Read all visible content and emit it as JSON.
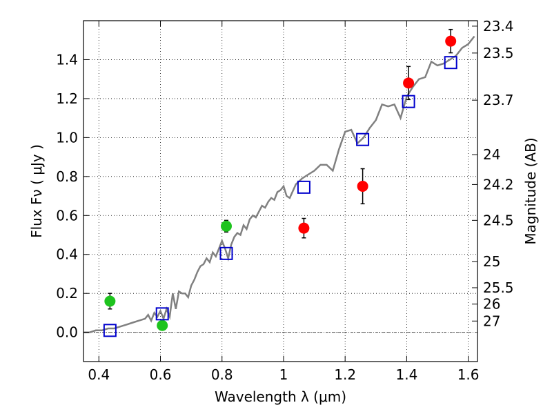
{
  "chart_data": {
    "type": "scatter",
    "xlabel": "Wavelength  λ (μm)",
    "ylabel": "Flux  Fν  ( μJy )",
    "ylabel_right": "Magnitude (AB)",
    "xlim": [
      0.35,
      1.63
    ],
    "ylim": [
      -0.15,
      1.6
    ],
    "grid": true,
    "x_ticks": [
      {
        "value": 0.4,
        "label": "0.4"
      },
      {
        "value": 0.6,
        "label": "0.6"
      },
      {
        "value": 0.8,
        "label": "0.8"
      },
      {
        "value": 1.0,
        "label": "1"
      },
      {
        "value": 1.2,
        "label": "1.2"
      },
      {
        "value": 1.4,
        "label": "1.4"
      },
      {
        "value": 1.6,
        "label": "1.6"
      }
    ],
    "y_ticks": [
      {
        "value": 0.0,
        "label": "0.0"
      },
      {
        "value": 0.2,
        "label": "0.2"
      },
      {
        "value": 0.4,
        "label": "0.4"
      },
      {
        "value": 0.6,
        "label": "0.6"
      },
      {
        "value": 0.8,
        "label": "0.8"
      },
      {
        "value": 1.0,
        "label": "1.0"
      },
      {
        "value": 1.2,
        "label": "1.2"
      },
      {
        "value": 1.4,
        "label": "1.4"
      }
    ],
    "right_ticks": [
      {
        "flux": 1.572,
        "label": "23.4"
      },
      {
        "flux": 1.434,
        "label": "23.5"
      },
      {
        "flux": 1.192,
        "label": "23.7"
      },
      {
        "flux": 0.912,
        "label": "24"
      },
      {
        "flux": 0.759,
        "label": "24.2"
      },
      {
        "flux": 0.575,
        "label": "24.5"
      },
      {
        "flux": 0.363,
        "label": "25"
      },
      {
        "flux": 0.229,
        "label": "25.5"
      },
      {
        "flux": 0.145,
        "label": "26"
      },
      {
        "flux": 0.058,
        "label": "27"
      }
    ],
    "model_spectrum": {
      "color": "#808080",
      "x": [
        0.35,
        0.37,
        0.39,
        0.41,
        0.43,
        0.45,
        0.47,
        0.49,
        0.51,
        0.53,
        0.55,
        0.56,
        0.57,
        0.58,
        0.59,
        0.6,
        0.61,
        0.62,
        0.63,
        0.64,
        0.65,
        0.66,
        0.67,
        0.68,
        0.69,
        0.7,
        0.71,
        0.72,
        0.73,
        0.74,
        0.75,
        0.76,
        0.77,
        0.78,
        0.79,
        0.8,
        0.81,
        0.82,
        0.83,
        0.84,
        0.85,
        0.86,
        0.87,
        0.88,
        0.89,
        0.9,
        0.91,
        0.92,
        0.93,
        0.94,
        0.95,
        0.96,
        0.97,
        0.98,
        0.99,
        1.0,
        1.01,
        1.02,
        1.04,
        1.06,
        1.08,
        1.1,
        1.12,
        1.14,
        1.16,
        1.18,
        1.2,
        1.22,
        1.24,
        1.26,
        1.28,
        1.3,
        1.32,
        1.34,
        1.36,
        1.38,
        1.4,
        1.42,
        1.44,
        1.46,
        1.48,
        1.5,
        1.52,
        1.54,
        1.56,
        1.58,
        1.6,
        1.62
      ],
      "y": [
        0.0,
        0.0,
        0.01,
        0.01,
        0.02,
        0.02,
        0.03,
        0.04,
        0.05,
        0.06,
        0.07,
        0.09,
        0.06,
        0.1,
        0.08,
        0.11,
        0.07,
        0.12,
        0.08,
        0.2,
        0.12,
        0.21,
        0.2,
        0.2,
        0.18,
        0.24,
        0.27,
        0.31,
        0.34,
        0.35,
        0.38,
        0.36,
        0.41,
        0.39,
        0.43,
        0.47,
        0.43,
        0.38,
        0.45,
        0.49,
        0.51,
        0.5,
        0.55,
        0.53,
        0.58,
        0.6,
        0.59,
        0.62,
        0.65,
        0.64,
        0.67,
        0.69,
        0.68,
        0.72,
        0.73,
        0.75,
        0.7,
        0.69,
        0.76,
        0.79,
        0.81,
        0.83,
        0.86,
        0.86,
        0.83,
        0.94,
        1.03,
        1.04,
        0.97,
        1.0,
        1.05,
        1.09,
        1.17,
        1.16,
        1.17,
        1.1,
        1.21,
        1.26,
        1.3,
        1.31,
        1.39,
        1.37,
        1.38,
        1.4,
        1.42,
        1.46,
        1.48,
        1.52
      ]
    },
    "series": [
      {
        "marker": "circle",
        "color": "#1ec31e",
        "points": [
          {
            "x": 0.436,
            "y": 0.16,
            "err": 0.04
          },
          {
            "x": 0.606,
            "y": 0.035,
            "err": 0.015
          },
          {
            "x": 0.814,
            "y": 0.545,
            "err": 0.03
          }
        ]
      },
      {
        "marker": "circle",
        "color": "#ff0000",
        "points": [
          {
            "x": 1.066,
            "y": 0.535,
            "err": 0.05
          },
          {
            "x": 1.257,
            "y": 0.75,
            "err": 0.09
          },
          {
            "x": 1.406,
            "y": 1.28,
            "err": 0.085
          },
          {
            "x": 1.543,
            "y": 1.495,
            "err": 0.06
          }
        ]
      },
      {
        "marker": "open-square",
        "color": "#0000cc",
        "points": [
          {
            "x": 0.436,
            "y": 0.01
          },
          {
            "x": 0.606,
            "y": 0.095
          },
          {
            "x": 0.814,
            "y": 0.405
          },
          {
            "x": 1.066,
            "y": 0.745
          },
          {
            "x": 1.257,
            "y": 0.99
          },
          {
            "x": 1.406,
            "y": 1.185
          },
          {
            "x": 1.543,
            "y": 1.385
          }
        ]
      }
    ]
  }
}
